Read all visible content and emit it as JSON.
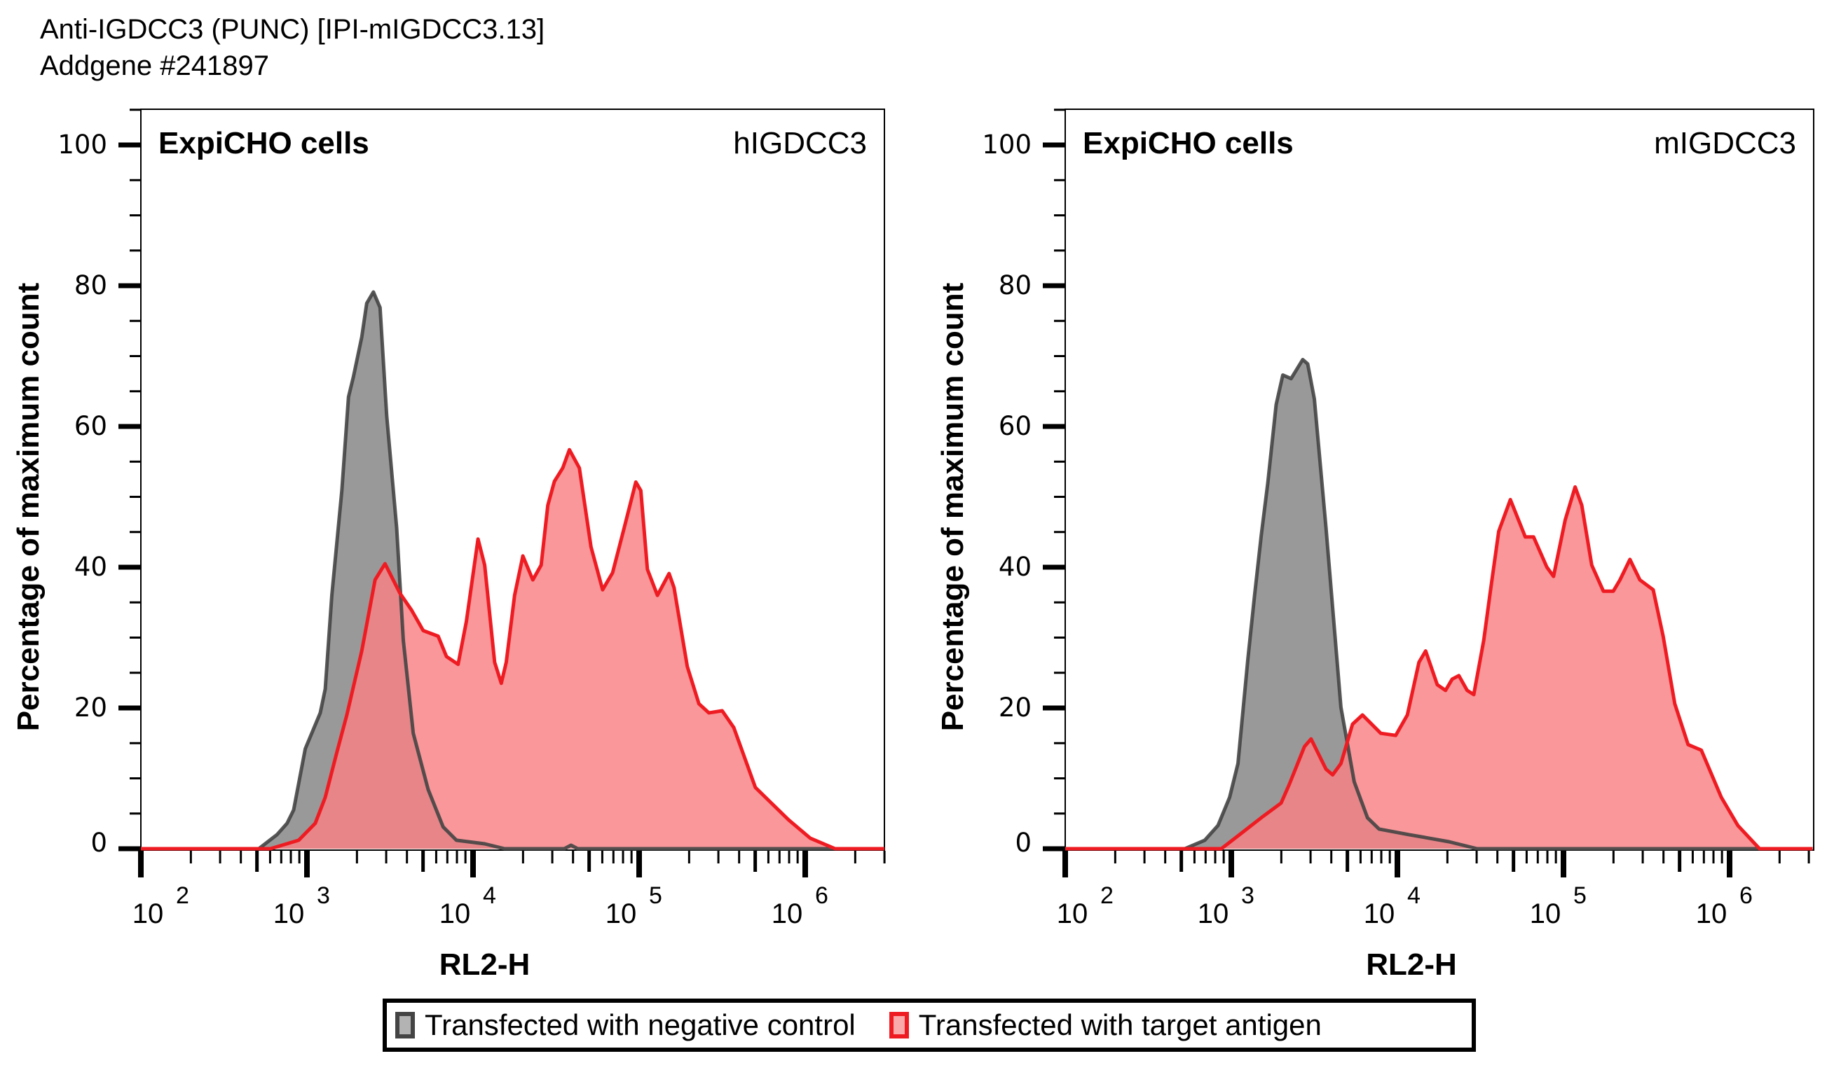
{
  "figure": {
    "title_line1": "Anti-IGDCC3 (PUNC) [IPI-mIGDCC3.13]",
    "title_line2": "Addgene #241897"
  },
  "legend": {
    "items": [
      {
        "label": "Transfected with negative control",
        "color": "#999999",
        "stroke": "#444444"
      },
      {
        "label": "Transfected with target antigen",
        "color": "#F88084",
        "stroke": "#EE1C22"
      }
    ]
  },
  "colors": {
    "negative_fill": "#999999",
    "negative_stroke": "#444444",
    "target_fill": "#F88084",
    "target_stroke": "#EE1C22"
  },
  "chart_data": [
    {
      "type": "area",
      "panel": "left",
      "title_left": "ExpiCHO cells",
      "title_right": "hIGDCC3",
      "xlabel": "RL2-H",
      "ylabel": "Percentage of maximum count",
      "xscale": "log",
      "xlim_log10": [
        2.0,
        6.5
      ],
      "ylim": [
        0,
        105
      ],
      "yticks": [
        0,
        20,
        40,
        60,
        80,
        100
      ],
      "xticks": [
        "10^2",
        "10^3",
        "10^4",
        "10^5",
        "10^6"
      ],
      "xtick_base": "10",
      "xtick_exponents": [
        "2",
        "3",
        "4",
        "5",
        "6"
      ],
      "ytick_labels": [
        "0",
        "20",
        "40",
        "60",
        "80",
        "100"
      ],
      "legend": "bottom-center",
      "series": [
        {
          "name": "Transfected with negative control",
          "log10_x": [
            2.0,
            2.71,
            2.82,
            2.88,
            2.92,
            2.99,
            3.08,
            3.11,
            3.15,
            3.21,
            3.25,
            3.28,
            3.33,
            3.36,
            3.4,
            3.44,
            3.48,
            3.54,
            3.58,
            3.64,
            3.73,
            3.82,
            3.9,
            4.07,
            4.19,
            4.55,
            4.59,
            4.63,
            6.5
          ],
          "y": [
            0,
            0,
            2.0,
            3.6,
            5.5,
            14.2,
            19.3,
            22.7,
            36.0,
            50.9,
            64.2,
            67.1,
            72.7,
            77.5,
            79.1,
            76.9,
            61.5,
            45.6,
            29.6,
            16.4,
            8.4,
            3.1,
            1.2,
            0.7,
            0,
            0,
            0.5,
            0,
            0
          ]
        },
        {
          "name": "Transfected with target antigen",
          "log10_x": [
            2.0,
            2.78,
            2.95,
            3.05,
            3.11,
            3.18,
            3.24,
            3.33,
            3.41,
            3.47,
            3.56,
            3.63,
            3.7,
            3.79,
            3.84,
            3.91,
            3.96,
            4.03,
            4.07,
            4.13,
            4.17,
            4.2,
            4.25,
            4.3,
            4.36,
            4.41,
            4.45,
            4.49,
            4.54,
            4.58,
            4.64,
            4.71,
            4.78,
            4.84,
            4.91,
            4.98,
            5.01,
            5.05,
            5.11,
            5.18,
            5.21,
            5.29,
            5.36,
            5.42,
            5.5,
            5.57,
            5.7,
            5.9,
            6.03,
            6.18,
            6.5
          ],
          "y": [
            0,
            0,
            1.2,
            3.6,
            7.3,
            13.7,
            19.0,
            28.1,
            38.2,
            40.5,
            36.3,
            33.9,
            31.0,
            30.2,
            27.3,
            26.2,
            32.3,
            44.0,
            40.3,
            26.5,
            23.5,
            26.5,
            36.0,
            41.6,
            38.2,
            40.3,
            48.8,
            52.2,
            54.1,
            56.7,
            54.1,
            42.9,
            36.8,
            39.2,
            45.6,
            52.1,
            50.9,
            39.7,
            36.0,
            39.1,
            37.1,
            25.9,
            20.6,
            19.3,
            19.6,
            17.2,
            8.7,
            4.1,
            1.5,
            0,
            0
          ]
        }
      ]
    },
    {
      "type": "area",
      "panel": "right",
      "title_left": "ExpiCHO cells",
      "title_right": "mIGDCC3",
      "xlabel": "RL2-H",
      "ylabel": "Percentage of maximum count",
      "xscale": "log",
      "xlim_log10": [
        2.0,
        6.5
      ],
      "ylim": [
        0,
        105
      ],
      "yticks": [
        0,
        20,
        40,
        60,
        80,
        100
      ],
      "xticks": [
        "10^2",
        "10^3",
        "10^4",
        "10^5",
        "10^6"
      ],
      "xtick_base": "10",
      "xtick_exponents": [
        "2",
        "3",
        "4",
        "5",
        "6"
      ],
      "ytick_labels": [
        "0",
        "20",
        "40",
        "60",
        "80",
        "100"
      ],
      "legend": "bottom-center",
      "series": [
        {
          "name": "Transfected with negative control",
          "log10_x": [
            2.0,
            2.72,
            2.84,
            2.92,
            2.99,
            3.04,
            3.1,
            3.14,
            3.18,
            3.22,
            3.27,
            3.31,
            3.36,
            3.43,
            3.46,
            3.5,
            3.57,
            3.66,
            3.74,
            3.82,
            3.89,
            4.07,
            4.19,
            4.31,
            4.48,
            6.5
          ],
          "y": [
            0,
            0,
            1.2,
            3.3,
            7.3,
            12.1,
            27.0,
            36.0,
            44.5,
            52.0,
            63.1,
            67.3,
            66.8,
            69.5,
            68.9,
            63.9,
            45.6,
            20.1,
            9.5,
            4.4,
            2.8,
            2.0,
            1.5,
            1.0,
            0,
            0
          ]
        },
        {
          "name": "Transfected with target antigen",
          "log10_x": [
            2.0,
            2.94,
            3.05,
            3.18,
            3.3,
            3.35,
            3.44,
            3.48,
            3.57,
            3.61,
            3.66,
            3.73,
            3.79,
            3.9,
            3.99,
            4.06,
            4.13,
            4.17,
            4.24,
            4.29,
            4.33,
            4.37,
            4.42,
            4.46,
            4.52,
            4.56,
            4.61,
            4.68,
            4.77,
            4.82,
            4.9,
            4.94,
            5.01,
            5.07,
            5.11,
            5.17,
            5.24,
            5.3,
            5.34,
            5.4,
            5.46,
            5.54,
            5.6,
            5.67,
            5.75,
            5.83,
            5.95,
            6.05,
            6.18,
            6.5
          ],
          "y": [
            0,
            0,
            2.0,
            4.4,
            6.5,
            9.2,
            14.5,
            15.6,
            11.3,
            10.5,
            12.1,
            17.7,
            19.0,
            16.4,
            16.1,
            19.0,
            26.5,
            28.1,
            23.3,
            22.5,
            24.1,
            24.6,
            22.5,
            21.9,
            29.6,
            36.6,
            45.1,
            49.6,
            44.3,
            44.3,
            40.0,
            38.7,
            46.7,
            51.4,
            48.8,
            40.3,
            36.6,
            36.6,
            38.2,
            41.1,
            38.2,
            36.8,
            30.2,
            20.6,
            14.8,
            14.0,
            7.3,
            3.3,
            0,
            0
          ]
        }
      ]
    }
  ]
}
